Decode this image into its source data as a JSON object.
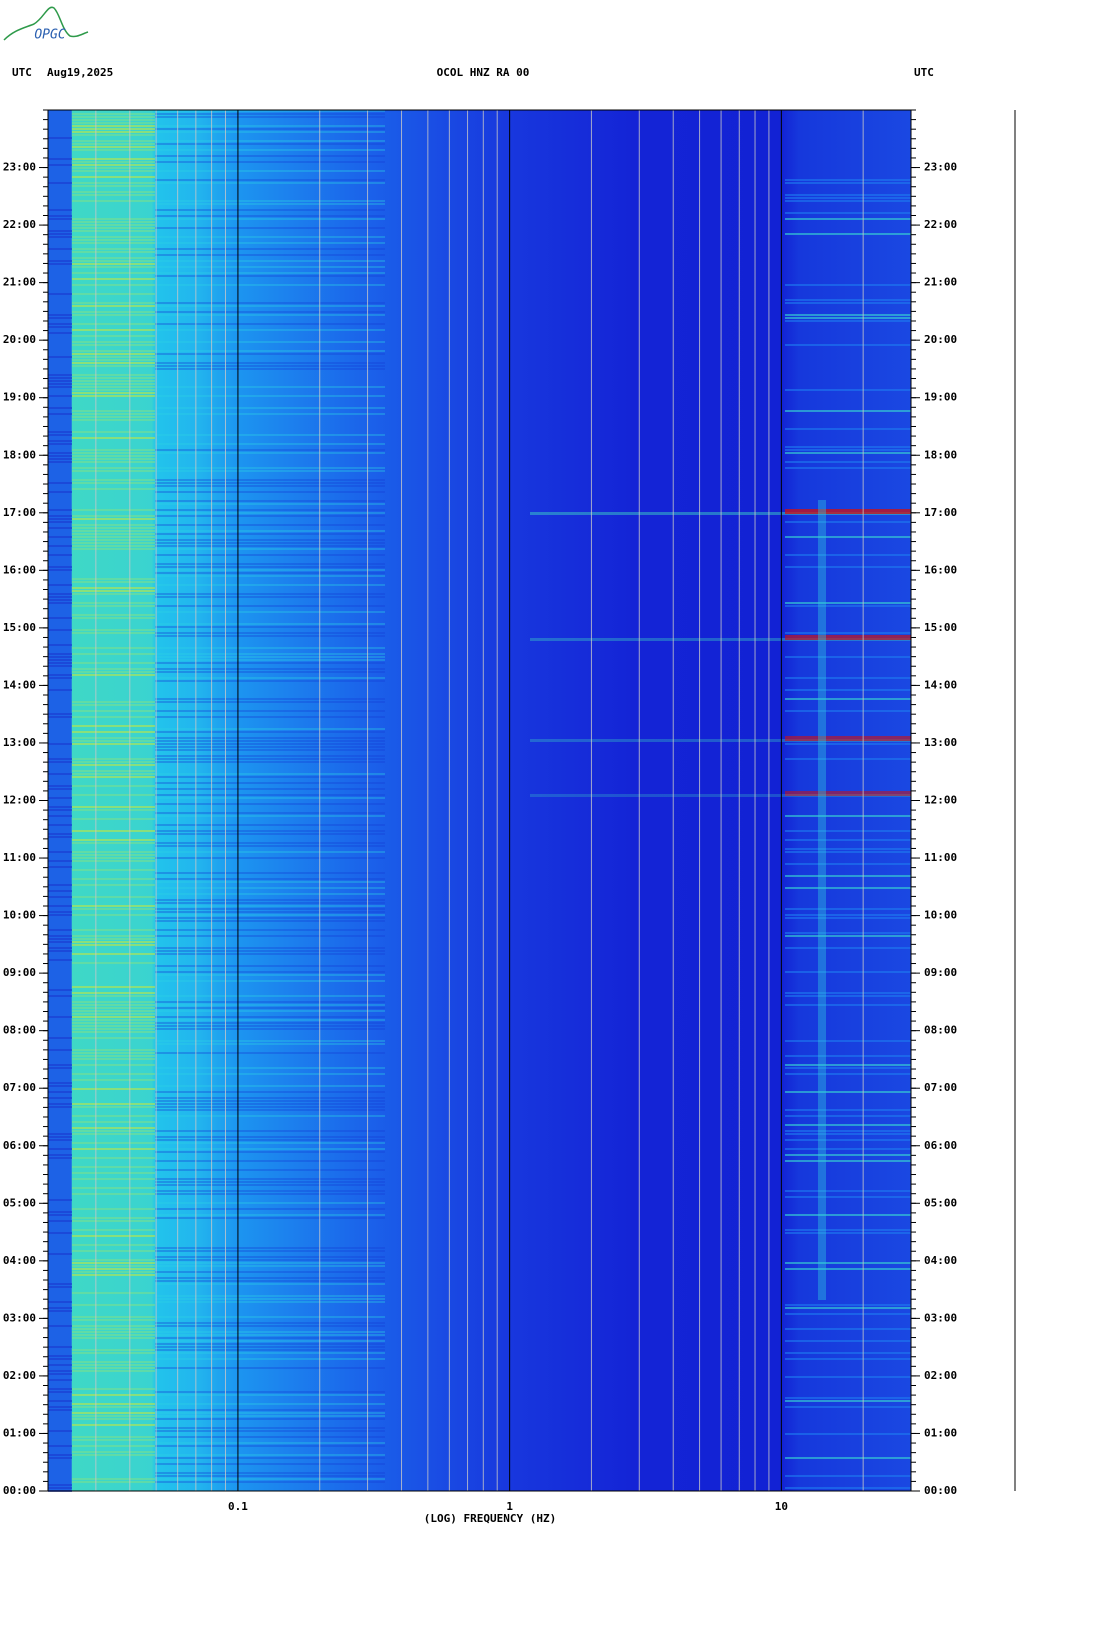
{
  "chart_data": {
    "type": "spectrogram",
    "logo": "OPGC",
    "title": "OCOL HNZ RA 00",
    "time_zone_left": "UTC",
    "date": "Aug19,2025",
    "time_zone_right": "UTC",
    "x_label": "(LOG) FREQUENCY (HZ)",
    "x_scale": "log",
    "xlim": [
      0.02,
      30
    ],
    "xticks": [
      0.1,
      1,
      10
    ],
    "x_grid": [
      0.03,
      0.04,
      0.05,
      0.06,
      0.07,
      0.08,
      0.09,
      0.2,
      0.3,
      0.4,
      0.5,
      0.6,
      0.7,
      0.8,
      0.9,
      2,
      3,
      4,
      5,
      6,
      7,
      8,
      9,
      20
    ],
    "ylim": [
      0,
      24
    ],
    "yticks": [
      {
        "value": 0,
        "label": "00:00"
      },
      {
        "value": 1,
        "label": "01:00"
      },
      {
        "value": 2,
        "label": "02:00"
      },
      {
        "value": 3,
        "label": "03:00"
      },
      {
        "value": 4,
        "label": "04:00"
      },
      {
        "value": 5,
        "label": "05:00"
      },
      {
        "value": 6,
        "label": "06:00"
      },
      {
        "value": 7,
        "label": "07:00"
      },
      {
        "value": 8,
        "label": "08:00"
      },
      {
        "value": 9,
        "label": "09:00"
      },
      {
        "value": 10,
        "label": "10:00"
      },
      {
        "value": 11,
        "label": "11:00"
      },
      {
        "value": 12,
        "label": "12:00"
      },
      {
        "value": 13,
        "label": "13:00"
      },
      {
        "value": 14,
        "label": "14:00"
      },
      {
        "value": 15,
        "label": "15:00"
      },
      {
        "value": 16,
        "label": "16:00"
      },
      {
        "value": 17,
        "label": "17:00"
      },
      {
        "value": 18,
        "label": "18:00"
      },
      {
        "value": 19,
        "label": "19:00"
      },
      {
        "value": 20,
        "label": "20:00"
      },
      {
        "value": 21,
        "label": "21:00"
      },
      {
        "value": 22,
        "label": "22:00"
      },
      {
        "value": 23,
        "label": "23:00"
      }
    ]
  }
}
